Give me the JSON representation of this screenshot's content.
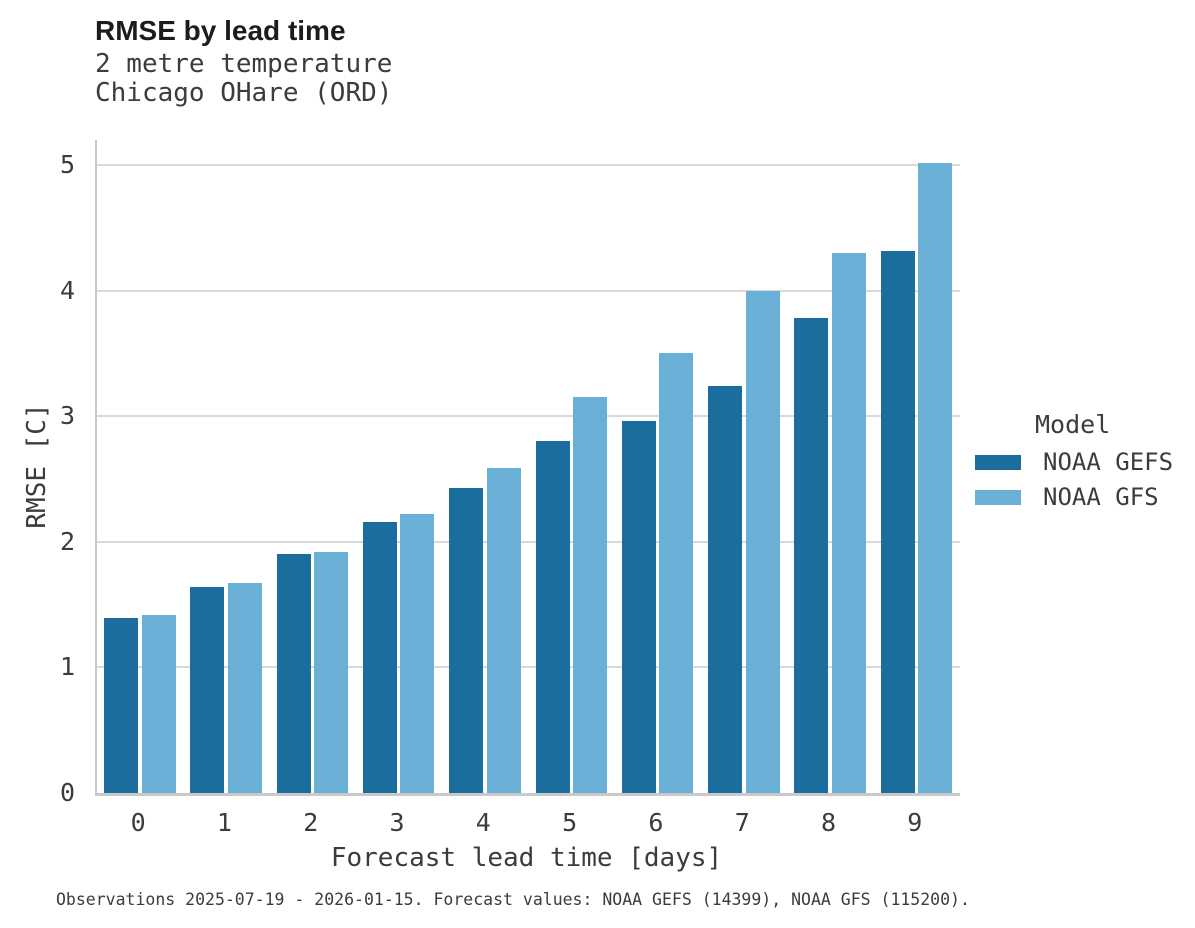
{
  "chart_data": {
    "type": "bar",
    "grouped": true,
    "title": "RMSE by lead time",
    "subtitle_lines": [
      "2 metre temperature",
      "Chicago OHare (ORD)"
    ],
    "xlabel": "Forecast lead time [days]",
    "ylabel": "RMSE [C]",
    "categories": [
      "0",
      "1",
      "2",
      "3",
      "4",
      "5",
      "6",
      "7",
      "8",
      "9"
    ],
    "series": [
      {
        "name": "NOAA GEFS",
        "color": "#1a6d9d",
        "values": [
          1.39,
          1.64,
          1.9,
          2.16,
          2.43,
          2.8,
          2.96,
          3.24,
          3.78,
          4.32
        ]
      },
      {
        "name": "NOAA GFS",
        "color": "#69afd6",
        "values": [
          1.42,
          1.67,
          1.92,
          2.22,
          2.59,
          3.15,
          3.5,
          4.0,
          4.3,
          5.02
        ]
      }
    ],
    "ylim": [
      0,
      5.2
    ],
    "yticks": [
      0,
      1,
      2,
      3,
      4,
      5
    ],
    "grid": "horizontal",
    "legend_title": "Model",
    "legend_position": "right",
    "caption": "Observations 2025-07-19 - 2026-01-15. Forecast values: NOAA GEFS (14399), NOAA GFS (115200)."
  },
  "style_colors": {
    "bar_dark": "#1a6d9d",
    "bar_light": "#69afd6",
    "gridline": "#d9d9d9",
    "axis_spine": "#c9c9c9",
    "title_text": "#1c1c1c",
    "body_text": "#3c3c3c",
    "background": "#ffffff"
  }
}
